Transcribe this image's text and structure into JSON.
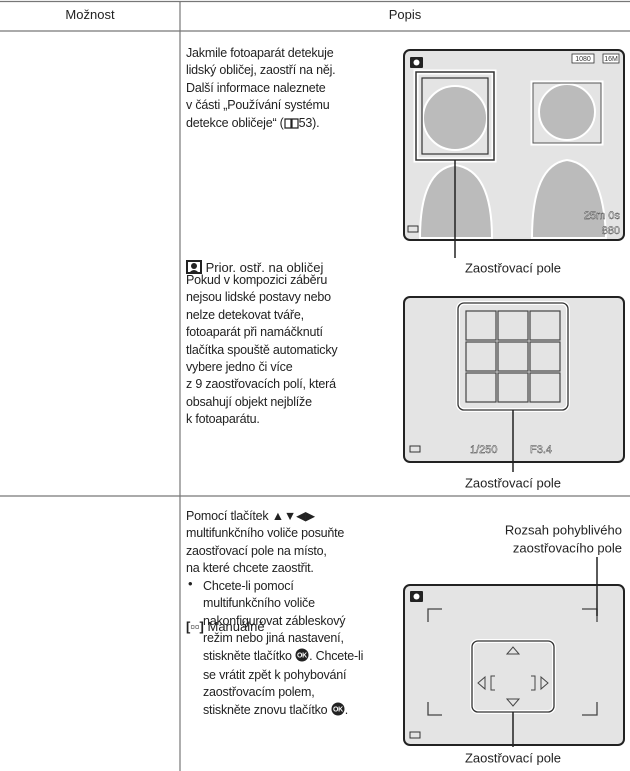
{
  "table": {
    "headers": [
      "Možnost",
      "Popis"
    ],
    "rows": [
      {
        "option": "Prior. ostř. na obličej",
        "paragraphs": [
          [
            "Jakmile fotoaparát detekuje",
            "lidský obličej, zaostří na něj.",
            "Další informace naleznete",
            "v části „Používání systému",
            [
              "detekce obličeje“ (",
              "53)."
            ]
          ],
          [
            "Pokud v kompozici záběru",
            "nejsou lidské postavy nebo",
            "nelze detekovat tváře,",
            "fotoaparát při namáčknutí",
            "tlačítka spouště automaticky",
            "vybere jedno či více",
            "z 9 zaostřovacích polí, která",
            "obsahují objekt nejblíže",
            "k fotoaparátu."
          ]
        ],
        "screen_1": {
          "resolution": "1080",
          "image_size": "16M",
          "time": "25m 0s",
          "shots": "880",
          "caption": "Zaostřovací pole"
        },
        "screen_2": {
          "shutter": "1/250",
          "aperture": "F3.4",
          "caption": "Zaostřovací pole"
        }
      },
      {
        "option": "Manuálně",
        "paragraphs": [
          [
            "Pomocí tlačítek ▲▼◀▶",
            "multifunkčního voliče posuňte",
            "zaostřovací pole na místo,",
            "na které chcete zaostřit."
          ]
        ],
        "bullet": [
          "Chcete-li pomocí",
          "multifunkčního voliče",
          "nakonfigurovat zábleskový",
          "režim nebo jiná nastavení,",
          [
            "stiskněte tlačítko ",
            ". Chcete-li"
          ],
          "se vrátit zpět k pohybování",
          "zaostřovacím polem,",
          [
            "stiskněte znovu tlačítko ",
            "."
          ]
        ],
        "screen_3": {
          "range_caption": [
            "Rozsah pohyblivého",
            "zaostřovacího pole"
          ],
          "caption": "Zaostřovací pole"
        }
      }
    ]
  }
}
